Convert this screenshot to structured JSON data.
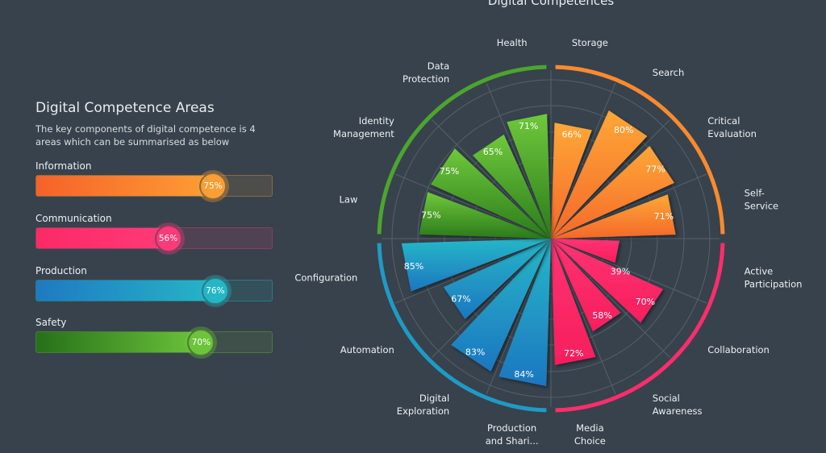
{
  "left_panel": {
    "title": "Digital Competence Areas",
    "description": "The key components of digital competence is 4 areas which can be summarised as below",
    "areas": [
      {
        "label": "Information",
        "value": 75,
        "value_label": "75%",
        "color_start": "#f5622a",
        "color_end": "#fd9e34",
        "track": "#4d4d4a",
        "border": "#8a6a3e"
      },
      {
        "label": "Communication",
        "value": 56,
        "value_label": "56%",
        "color_start": "#fb2a66",
        "color_end": "#ff3a78",
        "track": "#4f4253",
        "border": "#8a3f62"
      },
      {
        "label": "Production",
        "value": 76,
        "value_label": "76%",
        "color_start": "#1f79c2",
        "color_end": "#25b6c6",
        "track": "#34505a",
        "border": "#2b7a86"
      },
      {
        "label": "Safety",
        "value": 70,
        "value_label": "70%",
        "color_start": "#267019",
        "color_end": "#6cc43b",
        "track": "#3e5049",
        "border": "#4c7a3a"
      }
    ]
  },
  "chart_data": {
    "type": "polar-bar",
    "title": "Digital Competences",
    "rlim": [
      0,
      100
    ],
    "grid": true,
    "groups": [
      {
        "name": "Information",
        "color_top": "#fea736",
        "color_bottom": "#f4682a"
      },
      {
        "name": "Communication",
        "color_top": "#ff3473",
        "color_bottom": "#f61e5c"
      },
      {
        "name": "Production",
        "color_top": "#25b8c8",
        "color_bottom": "#1d76c0"
      },
      {
        "name": "Safety",
        "color_top": "#6fc83b",
        "color_bottom": "#2a7a1b"
      }
    ],
    "categories": [
      {
        "lines": [
          "Storage"
        ],
        "value": 66,
        "group": 0
      },
      {
        "lines": [
          "Search"
        ],
        "value": 80,
        "group": 0
      },
      {
        "lines": [
          "Critical",
          "Evaluation"
        ],
        "value": 77,
        "group": 0
      },
      {
        "lines": [
          "Self-",
          "Service"
        ],
        "value": 71,
        "group": 0
      },
      {
        "lines": [
          "Active",
          "Participation"
        ],
        "value": 39,
        "group": 1
      },
      {
        "lines": [
          "Collaboration"
        ],
        "value": 70,
        "group": 1
      },
      {
        "lines": [
          "Social",
          "Awareness"
        ],
        "value": 58,
        "group": 1
      },
      {
        "lines": [
          "Media",
          "Choice"
        ],
        "value": 72,
        "group": 1
      },
      {
        "lines": [
          "Production",
          "and Shari..."
        ],
        "value": 84,
        "group": 2
      },
      {
        "lines": [
          "Digital",
          "Exploration"
        ],
        "value": 83,
        "group": 2
      },
      {
        "lines": [
          "Automation"
        ],
        "value": 67,
        "group": 2
      },
      {
        "lines": [
          "Configuration"
        ],
        "value": 85,
        "group": 2
      },
      {
        "lines": [
          "Law"
        ],
        "value": 75,
        "group": 3
      },
      {
        "lines": [
          "Identity",
          "Management"
        ],
        "value": 75,
        "group": 3
      },
      {
        "lines": [
          "Data",
          "Protection"
        ],
        "value": 65,
        "group": 3
      },
      {
        "lines": [
          "Health"
        ],
        "value": 71,
        "group": 3
      }
    ]
  }
}
